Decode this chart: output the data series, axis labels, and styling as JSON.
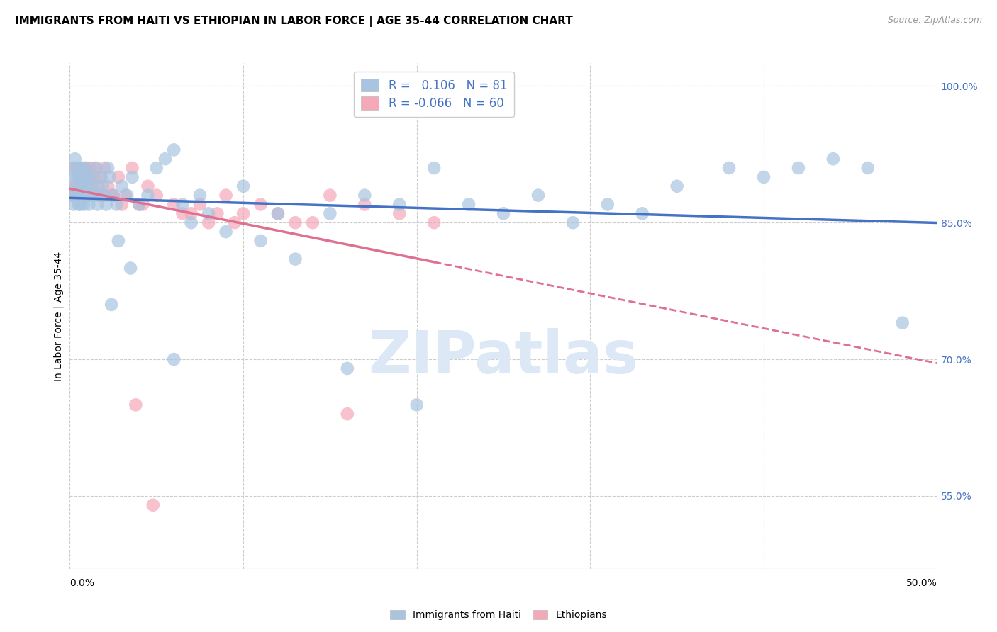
{
  "title": "IMMIGRANTS FROM HAITI VS ETHIOPIAN IN LABOR FORCE | AGE 35-44 CORRELATION CHART",
  "source": "Source: ZipAtlas.com",
  "ylabel": "In Labor Force | Age 35-44",
  "y_ticks_right": [
    "100.0%",
    "85.0%",
    "70.0%",
    "55.0%"
  ],
  "y_tick_values": [
    1.0,
    0.85,
    0.7,
    0.55
  ],
  "xlim": [
    0.0,
    0.5
  ],
  "ylim": [
    0.47,
    1.025
  ],
  "legend_haiti_R": "0.106",
  "legend_haiti_N": "81",
  "legend_ethiopian_R": "-0.066",
  "legend_ethiopian_N": "60",
  "haiti_color": "#a8c4e0",
  "ethiopian_color": "#f4a8b8",
  "haiti_line_color": "#4472c4",
  "ethiopian_line_color": "#e07090",
  "grid_color": "#cccccc",
  "watermark_color": "#dce8f5",
  "x_grid_ticks": [
    0.0,
    0.1,
    0.2,
    0.3,
    0.4,
    0.5
  ],
  "haiti_scatter_x": [
    0.001,
    0.002,
    0.002,
    0.003,
    0.003,
    0.003,
    0.004,
    0.004,
    0.005,
    0.005,
    0.005,
    0.005,
    0.006,
    0.006,
    0.006,
    0.007,
    0.007,
    0.007,
    0.008,
    0.008,
    0.008,
    0.009,
    0.009,
    0.01,
    0.01,
    0.011,
    0.011,
    0.012,
    0.013,
    0.014,
    0.015,
    0.016,
    0.017,
    0.018,
    0.019,
    0.02,
    0.021,
    0.022,
    0.023,
    0.025,
    0.027,
    0.03,
    0.033,
    0.036,
    0.04,
    0.045,
    0.05,
    0.055,
    0.06,
    0.065,
    0.07,
    0.075,
    0.08,
    0.09,
    0.1,
    0.11,
    0.12,
    0.13,
    0.15,
    0.17,
    0.19,
    0.21,
    0.23,
    0.25,
    0.27,
    0.29,
    0.31,
    0.33,
    0.35,
    0.38,
    0.4,
    0.42,
    0.44,
    0.46,
    0.48,
    0.2,
    0.16,
    0.06,
    0.035,
    0.028,
    0.024
  ],
  "haiti_scatter_y": [
    0.88,
    0.87,
    0.91,
    0.89,
    0.9,
    0.92,
    0.88,
    0.9,
    0.88,
    0.87,
    0.89,
    0.91,
    0.87,
    0.88,
    0.9,
    0.88,
    0.89,
    0.91,
    0.87,
    0.89,
    0.9,
    0.88,
    0.91,
    0.89,
    0.9,
    0.88,
    0.87,
    0.9,
    0.89,
    0.88,
    0.91,
    0.87,
    0.88,
    0.9,
    0.89,
    0.88,
    0.87,
    0.91,
    0.9,
    0.88,
    0.87,
    0.89,
    0.88,
    0.9,
    0.87,
    0.88,
    0.91,
    0.92,
    0.93,
    0.87,
    0.85,
    0.88,
    0.86,
    0.84,
    0.89,
    0.83,
    0.86,
    0.81,
    0.86,
    0.88,
    0.87,
    0.91,
    0.87,
    0.86,
    0.88,
    0.85,
    0.87,
    0.86,
    0.89,
    0.91,
    0.9,
    0.91,
    0.92,
    0.91,
    0.74,
    0.65,
    0.69,
    0.7,
    0.8,
    0.83,
    0.76
  ],
  "ethiopian_scatter_x": [
    0.001,
    0.002,
    0.003,
    0.003,
    0.004,
    0.004,
    0.005,
    0.005,
    0.006,
    0.006,
    0.007,
    0.007,
    0.008,
    0.008,
    0.009,
    0.009,
    0.01,
    0.01,
    0.011,
    0.011,
    0.012,
    0.012,
    0.013,
    0.014,
    0.015,
    0.016,
    0.017,
    0.018,
    0.02,
    0.022,
    0.025,
    0.028,
    0.032,
    0.036,
    0.04,
    0.045,
    0.05,
    0.06,
    0.07,
    0.08,
    0.09,
    0.1,
    0.11,
    0.13,
    0.15,
    0.17,
    0.19,
    0.21,
    0.024,
    0.03,
    0.038,
    0.042,
    0.048,
    0.065,
    0.075,
    0.085,
    0.095,
    0.12,
    0.14,
    0.16
  ],
  "ethiopian_scatter_y": [
    0.88,
    0.89,
    0.91,
    0.88,
    0.91,
    0.89,
    0.9,
    0.88,
    0.89,
    0.91,
    0.88,
    0.9,
    0.89,
    0.91,
    0.88,
    0.9,
    0.89,
    0.91,
    0.88,
    0.9,
    0.91,
    0.89,
    0.88,
    0.9,
    0.91,
    0.89,
    0.88,
    0.9,
    0.91,
    0.89,
    0.88,
    0.9,
    0.88,
    0.91,
    0.87,
    0.89,
    0.88,
    0.87,
    0.86,
    0.85,
    0.88,
    0.86,
    0.87,
    0.85,
    0.88,
    0.87,
    0.86,
    0.85,
    0.88,
    0.87,
    0.65,
    0.87,
    0.54,
    0.86,
    0.87,
    0.86,
    0.85,
    0.86,
    0.85,
    0.64
  ]
}
